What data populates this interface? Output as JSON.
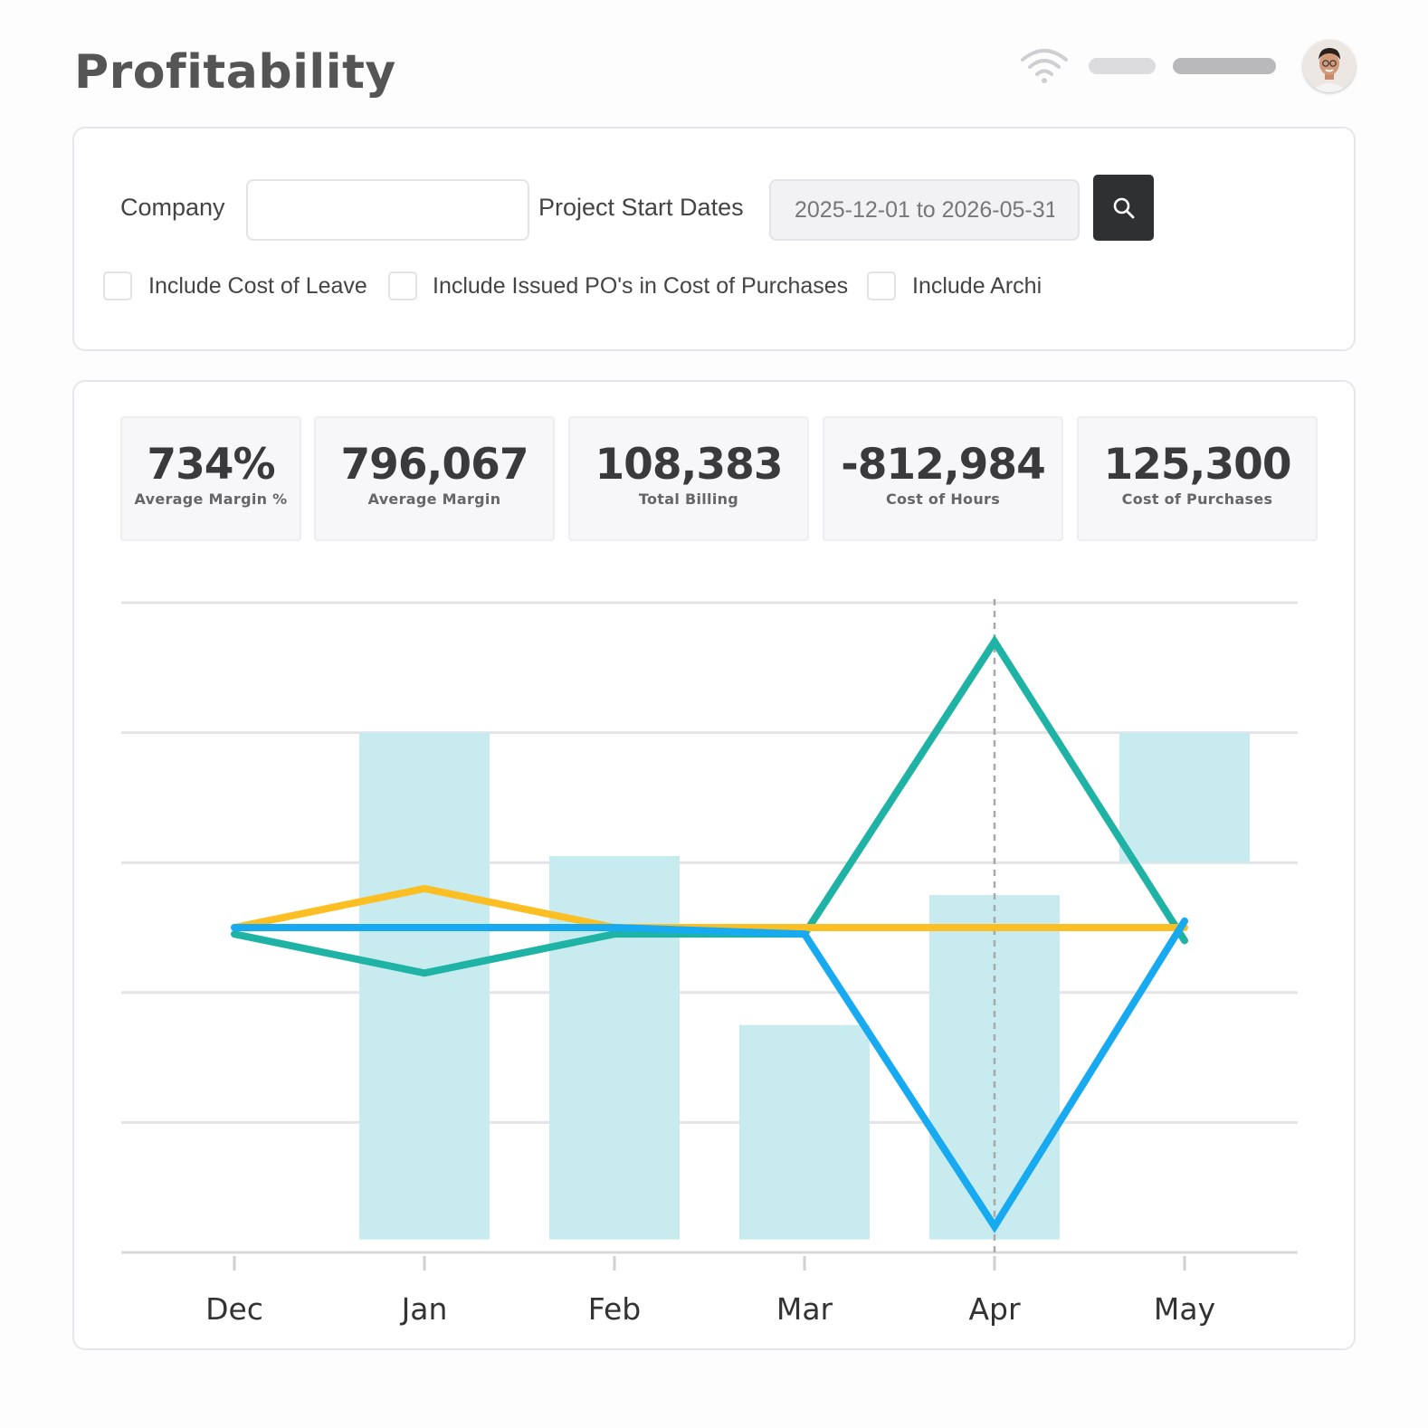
{
  "page": {
    "title": "Profitability"
  },
  "header": {
    "wifi_icon": "wifi-icon",
    "avatar": "user-avatar"
  },
  "filters": {
    "company_label": "Company",
    "company_value": "",
    "dates_label": "Project Start Dates",
    "dates_value": "2025-12-01 to 2026-05-31",
    "search_icon": "search-icon",
    "checkboxes": [
      {
        "label": "Include Cost of Leave",
        "checked": false
      },
      {
        "label": "Include Issued PO's in Cost of Purchases",
        "checked": false
      },
      {
        "label": "Include Archi",
        "checked": false
      }
    ]
  },
  "stats": [
    {
      "value": "734%",
      "label": "Average Margin %"
    },
    {
      "value": "796,067",
      "label": "Average Margin"
    },
    {
      "value": "108,383",
      "label": "Total Billing"
    },
    {
      "value": "-812,984",
      "label": "Cost of Hours"
    },
    {
      "value": "125,300",
      "label": "Cost of Purchases"
    }
  ],
  "chart_data": {
    "type": "bar",
    "categories": [
      "Dec",
      "Jan",
      "Feb",
      "Mar",
      "Apr",
      "May"
    ],
    "ylim": [
      0,
      5
    ],
    "grid": true,
    "highlighted_category": "Apr",
    "colors": {
      "bars": "#c8ebf0",
      "teal_line": "#1fb3a6",
      "yellow_line": "#fbbf24",
      "blue_line": "#18aaf0"
    },
    "bars": [
      {
        "low": 0,
        "high": 0
      },
      {
        "low": 0.1,
        "high": 4.0
      },
      {
        "low": 0.1,
        "high": 3.05
      },
      {
        "low": 0.1,
        "high": 1.75
      },
      {
        "low": 0.1,
        "high": 2.75
      },
      {
        "low": 3.0,
        "high": 4.0
      }
    ],
    "series": [
      {
        "color": "teal",
        "values": [
          2.45,
          2.15,
          2.45,
          2.45,
          4.7,
          2.4
        ]
      },
      {
        "color": "yellow",
        "values": [
          2.5,
          2.8,
          2.5,
          2.5,
          2.5,
          2.5
        ]
      },
      {
        "color": "blue",
        "values": [
          2.5,
          2.5,
          2.5,
          2.45,
          0.2,
          2.55
        ]
      }
    ]
  }
}
